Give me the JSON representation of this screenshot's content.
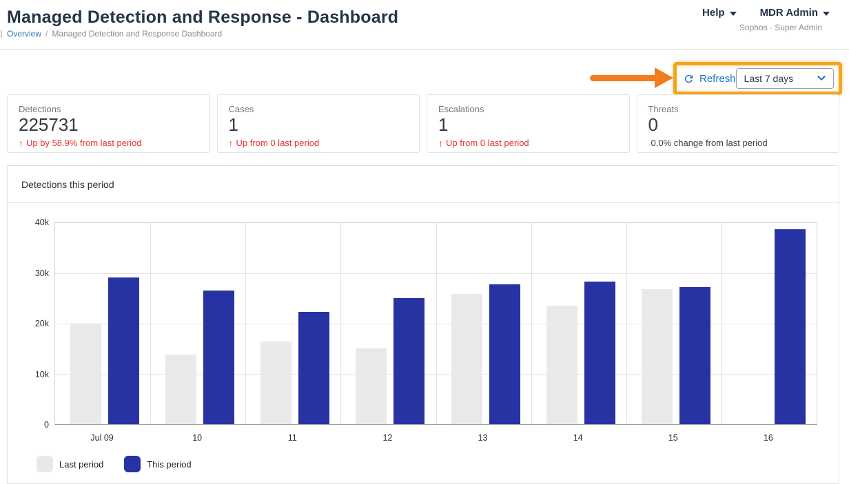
{
  "header": {
    "title": "Managed Detection and Response - Dashboard",
    "breadcrumb": {
      "link": "Overview",
      "separator": "/",
      "current": "Managed Detection and Response Dashboard"
    },
    "nav": {
      "help_label": "Help",
      "account_label": "MDR Admin",
      "account_sub": "Sophos · Super Admin"
    }
  },
  "toolbar": {
    "refresh_label": "Refresh",
    "period_selected": "Last 7 days"
  },
  "stat_cards": [
    {
      "label": "Detections",
      "value": "225731",
      "delta_arrow": "↑",
      "delta": "Up by 58.9% from last period",
      "delta_color": "red"
    },
    {
      "label": "Cases",
      "value": "1",
      "delta_arrow": "↑",
      "delta": "Up from 0 last period",
      "delta_color": "red"
    },
    {
      "label": "Escalations",
      "value": "1",
      "delta_arrow": "↑",
      "delta": "Up from 0 last period",
      "delta_color": "red"
    },
    {
      "label": "Threats",
      "value": "0",
      "delta": "0.0% change from last period",
      "delta_color": "neutral"
    }
  ],
  "chart_panel": {
    "title": "Detections this period"
  },
  "chart_data": {
    "type": "bar",
    "title": "Detections this period",
    "categories": [
      "Jul 09",
      "10",
      "11",
      "12",
      "13",
      "14",
      "15",
      "16"
    ],
    "series": [
      {
        "name": "Last period",
        "color": "#e9e9e9",
        "values": [
          19900,
          13900,
          16500,
          15100,
          25900,
          23500,
          26900,
          0
        ]
      },
      {
        "name": "This period",
        "color": "#2833a3",
        "values": [
          29200,
          26600,
          22300,
          25100,
          27800,
          28300,
          27300,
          38800
        ]
      }
    ],
    "xlabel": "",
    "ylabel": "",
    "ylim": [
      0,
      40000
    ],
    "yticks": [
      "40k",
      "30k",
      "20k",
      "10k",
      "0"
    ],
    "grid": true,
    "legend_position": "bottom-left"
  },
  "annotation": {
    "arrow_color": "#f07d1e",
    "box_color": "#f4a41d"
  },
  "colors": {
    "title_navy": "#263449",
    "link_blue": "#3072bc",
    "refresh_blue": "#1c6ec9",
    "delta_red": "#e6332e"
  }
}
